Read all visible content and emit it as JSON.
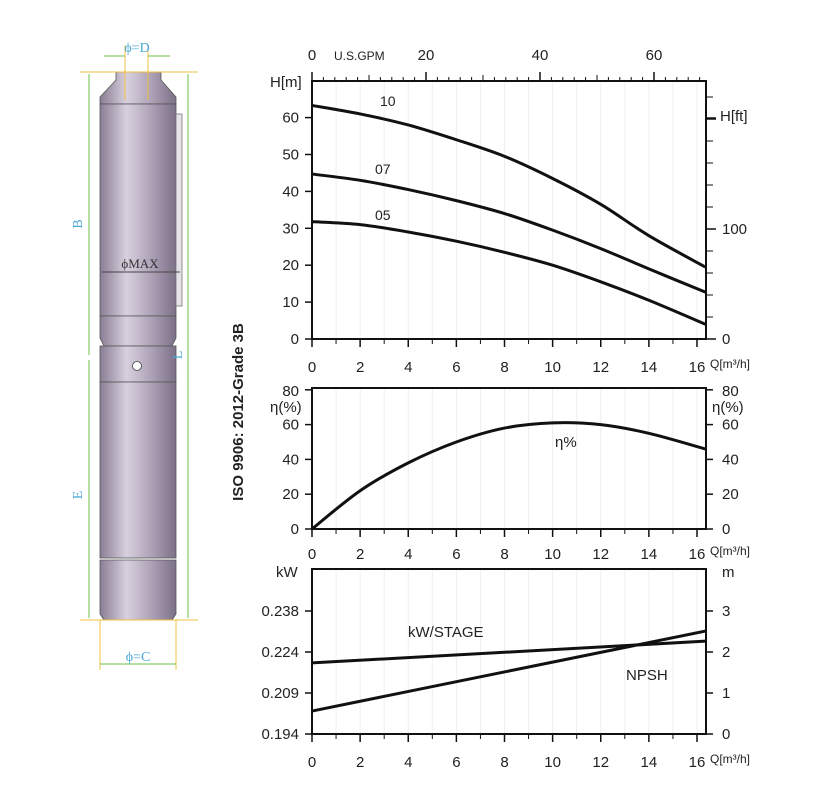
{
  "side_label": "ISO 9906: 2012-Grade 3B",
  "drawing": {
    "dim_d": "ϕ=D",
    "dim_c": "ϕ=C",
    "dim_max": "ϕMAX",
    "dim_b": "B",
    "dim_e": "E",
    "dim_l": "L"
  },
  "chart_data": [
    {
      "type": "line",
      "xlabel": "Q[m³/h]",
      "ylabel": "H[m]",
      "y2label": "H[ft]",
      "x2label": "U.S.GPM",
      "xlim": [
        0,
        16.35
      ],
      "ylim": [
        0,
        70
      ],
      "x_ticks": [
        0,
        2,
        4,
        6,
        8,
        10,
        12,
        14,
        16
      ],
      "y_ticks": [
        0,
        10,
        20,
        30,
        40,
        50,
        60
      ],
      "x2_ticks": [
        0,
        20,
        40,
        60
      ],
      "y2_ticks": [
        0,
        100
      ],
      "grid": true,
      "x": [
        0,
        2,
        4,
        6,
        8,
        10,
        12,
        14,
        16.35
      ],
      "series": [
        {
          "name": "10",
          "values": [
            63.3,
            61,
            58,
            54,
            49.5,
            43.5,
            36.5,
            28,
            19.5
          ]
        },
        {
          "name": "07",
          "values": [
            44.7,
            43,
            40.5,
            37.5,
            34,
            29.5,
            24.5,
            19,
            12.7
          ]
        },
        {
          "name": "05",
          "values": [
            31.8,
            31,
            29,
            26.5,
            23.5,
            20,
            15.5,
            10.5,
            4
          ]
        }
      ]
    },
    {
      "type": "line",
      "xlabel": "Q[m³/h]",
      "ylabel": "η(%)",
      "y2label": "η(%)",
      "xlim": [
        0,
        16.35
      ],
      "ylim": [
        0,
        80
      ],
      "x_ticks": [
        0,
        2,
        4,
        6,
        8,
        10,
        12,
        14,
        16
      ],
      "y_ticks": [
        0,
        20,
        40,
        60,
        80
      ],
      "grid": true,
      "x": [
        0,
        2,
        4,
        6,
        8,
        10,
        12,
        14,
        16.35
      ],
      "series": [
        {
          "name": "η%",
          "values": [
            0,
            22,
            38,
            50,
            58,
            61,
            60,
            55,
            46
          ]
        }
      ]
    },
    {
      "type": "line",
      "xlabel": "Q[m³/h]",
      "ylabel": "kW",
      "y2label": "m",
      "xlim": [
        0,
        16.35
      ],
      "ylim_kw": [
        0.194,
        0.238
      ],
      "ylim_m": [
        0,
        4
      ],
      "x_ticks": [
        0,
        2,
        4,
        6,
        8,
        10,
        12,
        14,
        16
      ],
      "y_ticks": [
        "0.194",
        "0.209",
        "0.224",
        "0.238"
      ],
      "y2_ticks": [
        0,
        1,
        2,
        3
      ],
      "grid": true,
      "x": [
        0,
        16.35
      ],
      "series": [
        {
          "name": "kW/STAGE",
          "axis": "kW",
          "values": [
            0.22,
            0.2277
          ]
        },
        {
          "name": "NPSH",
          "axis": "m",
          "values": [
            0.56,
            2.51
          ]
        }
      ]
    }
  ]
}
